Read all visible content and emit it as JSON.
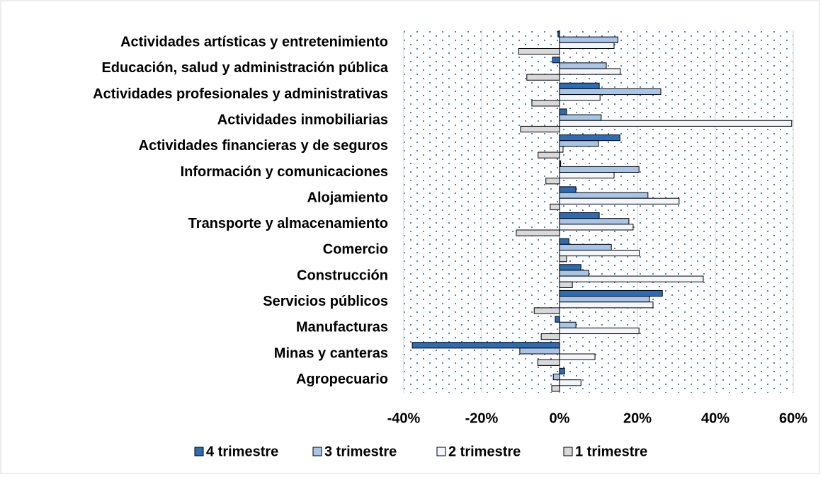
{
  "chart_data": {
    "type": "hbar",
    "categories": [
      "Actividades artísticas y entretenimiento",
      "Educación, salud y administración pública",
      "Actividades profesionales y administrativas",
      "Actividades inmobiliarias",
      "Actividades financieras y de seguros",
      "Información y comunicaciones",
      "Alojamiento",
      "Transporte y almacenamiento",
      "Comercio",
      "Construcción",
      "Servicios públicos",
      "Manufacturas",
      "Minas y canteras",
      "Agropecuario"
    ],
    "series": [
      {
        "name": "4 trimestre",
        "color": "#2e6bb0",
        "values": [
          -0.4,
          -1.8,
          10.2,
          1.8,
          15.5,
          0.3,
          4.2,
          10.2,
          2.4,
          5.5,
          26.4,
          -1.1,
          -37.8,
          1.3
        ]
      },
      {
        "name": "3 trimestre",
        "color": "#a9c4e4",
        "values": [
          15,
          12,
          26,
          10.7,
          10,
          20.4,
          22.7,
          17.8,
          13.3,
          7.5,
          23.1,
          4.2,
          -10.2,
          -1.6
        ]
      },
      {
        "name": "2 trimestre",
        "color": "#f2f5fa",
        "values": [
          14,
          15.6,
          10.4,
          59.6,
          0.9,
          14,
          30.7,
          18.9,
          20.5,
          36.9,
          24,
          20.4,
          9.1,
          5.5
        ]
      },
      {
        "name": "1 trimestre",
        "color": "#d9d9d9",
        "values": [
          -10.5,
          -8.4,
          -7.1,
          -10,
          -5.5,
          -3.5,
          -2.4,
          -11.1,
          1.8,
          3.3,
          -6.5,
          -4.7,
          -5.6,
          -2
        ]
      }
    ],
    "xlim": [
      -40,
      60
    ],
    "xticks": [
      {
        "value": -40,
        "label": "-40%"
      },
      {
        "value": -20,
        "label": "-20%"
      },
      {
        "value": 0,
        "label": "0%"
      },
      {
        "value": 20,
        "label": "20%"
      },
      {
        "value": 40,
        "label": "40%"
      },
      {
        "value": 60,
        "label": "60%"
      }
    ],
    "grid": true,
    "legend": "bottom"
  }
}
